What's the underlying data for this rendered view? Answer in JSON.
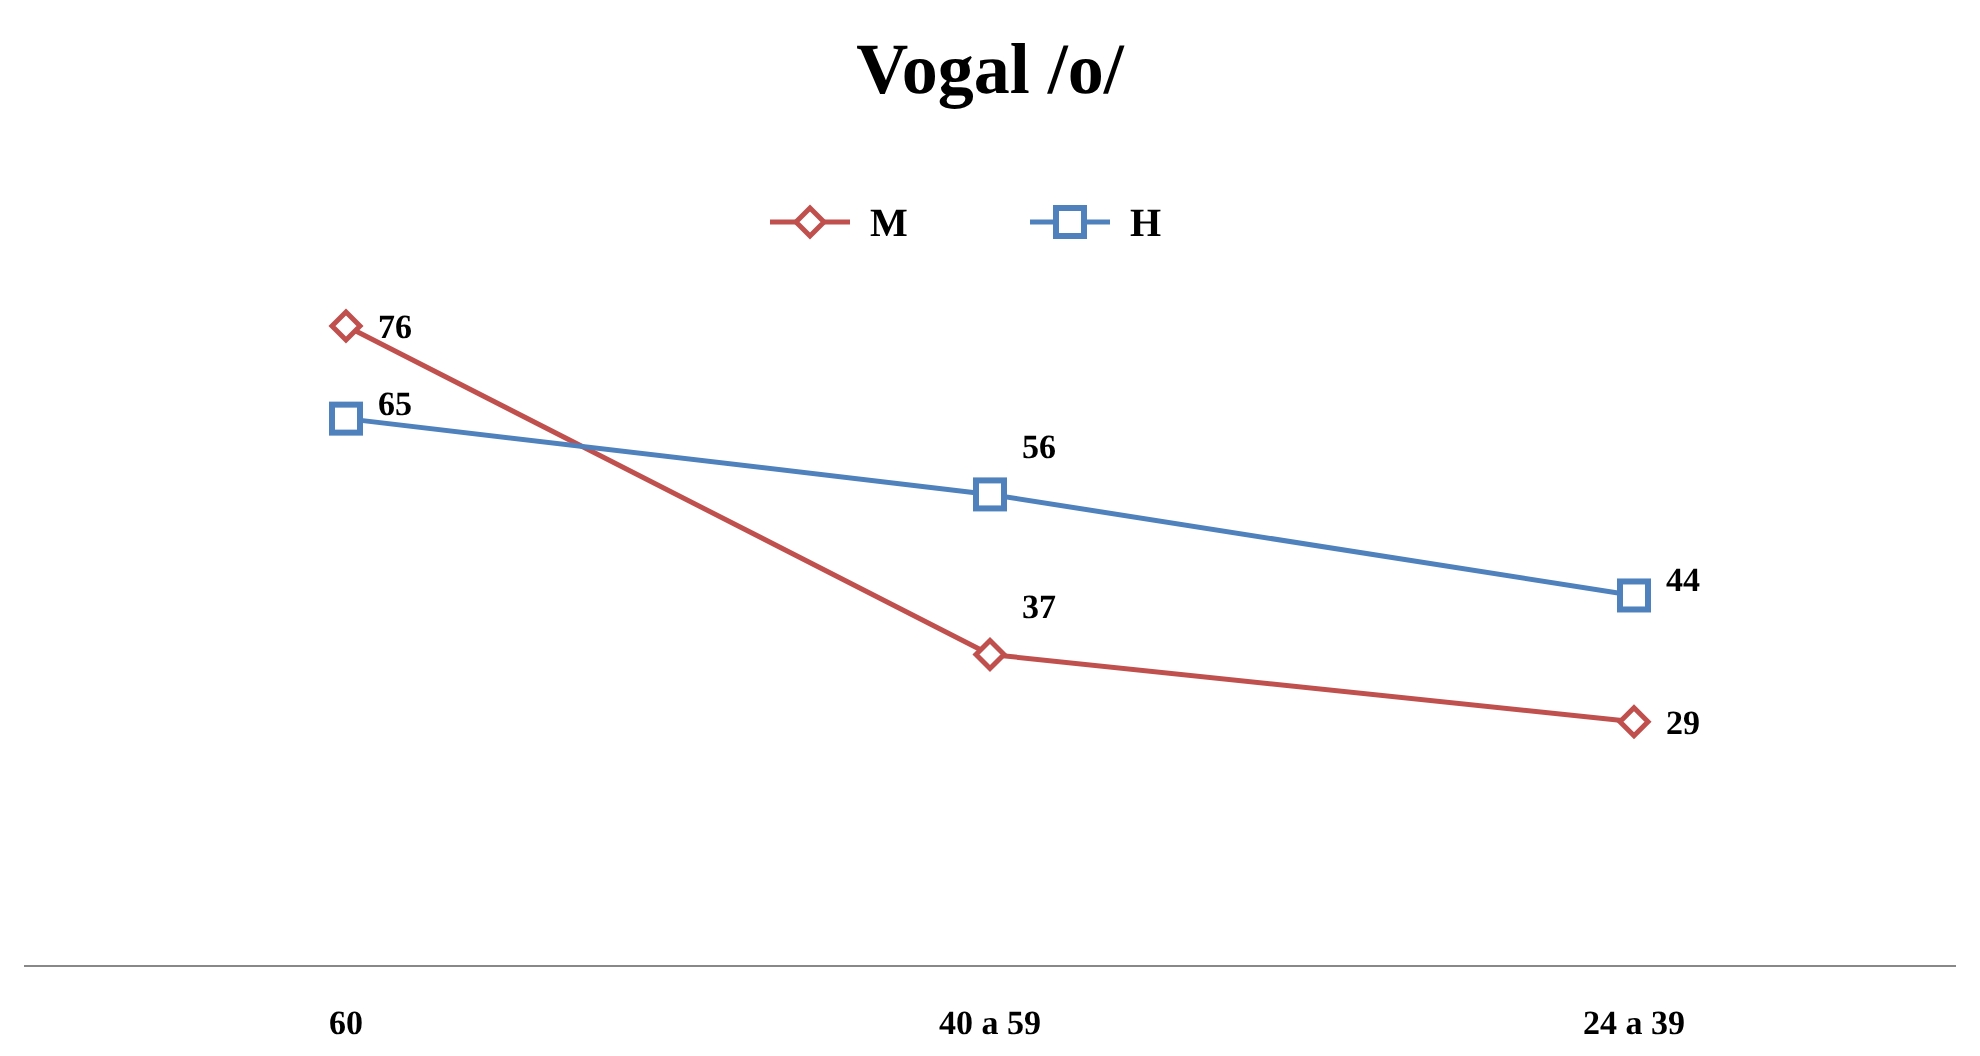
{
  "chart_data": {
    "type": "line",
    "title": "Vogal /o/",
    "categories": [
      "60",
      "40 a 59",
      "24 a 39"
    ],
    "series": [
      {
        "name": "M",
        "color": "#c0504d",
        "values": [
          76,
          37,
          29
        ],
        "marker": "diamond"
      },
      {
        "name": "H",
        "color": "#4f81bd",
        "values": [
          65,
          56,
          44
        ],
        "marker": "square"
      }
    ],
    "tick_labels": "x",
    "data_labels": true,
    "legend": "top"
  }
}
